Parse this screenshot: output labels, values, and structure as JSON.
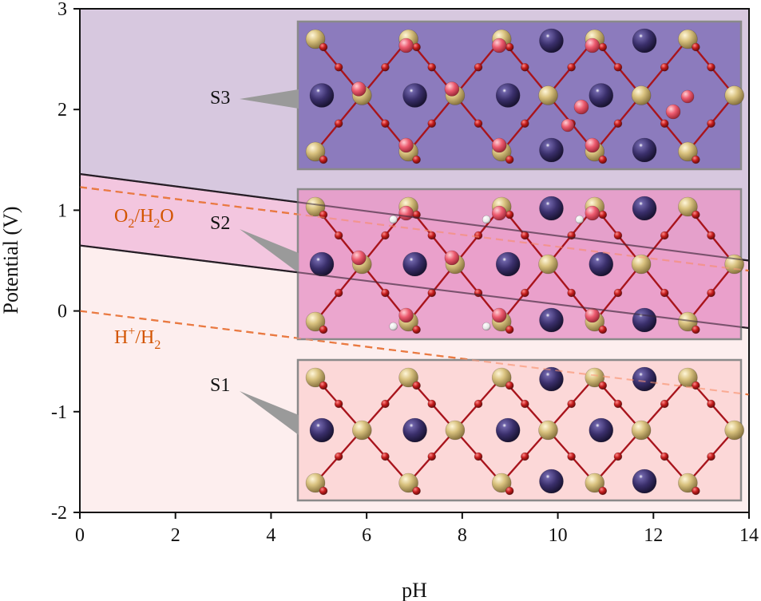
{
  "chart_data": {
    "type": "phase-diagram",
    "title": "",
    "xlabel": "pH",
    "ylabel": "Potential (V)",
    "xlim": [
      0,
      14
    ],
    "ylim": [
      -2,
      3
    ],
    "xticks": [
      0,
      2,
      4,
      6,
      8,
      10,
      12,
      14
    ],
    "yticks": [
      -2,
      -1,
      0,
      1,
      2,
      3
    ],
    "boundaries": [
      {
        "name": "S2/S3 boundary",
        "color": "#111111",
        "points": [
          [
            0,
            1.36
          ],
          [
            14,
            0.5
          ]
        ]
      },
      {
        "name": "S1/S2 boundary",
        "color": "#111111",
        "points": [
          [
            0,
            0.65
          ],
          [
            14,
            -0.17
          ]
        ]
      }
    ],
    "reference_lines": [
      {
        "label_main": "O",
        "label_sub1": "2",
        "label_mid": "/H",
        "label_sub2": "2",
        "label_end": "O",
        "color": "#d35400",
        "dash": "dashed",
        "points": [
          [
            0,
            1.23
          ],
          [
            14,
            0.4
          ]
        ]
      },
      {
        "label_main": "H",
        "label_sup": "+",
        "label_mid": "/H",
        "label_sub2": "2",
        "label_end": "",
        "color": "#d35400",
        "dash": "dashed",
        "points": [
          [
            0,
            0.0
          ],
          [
            14,
            -0.83
          ]
        ]
      }
    ],
    "regions": [
      {
        "name": "S3",
        "color": "#d7c8df"
      },
      {
        "name": "S2",
        "color": "#f3c6df"
      },
      {
        "name": "S1",
        "color": "#fdeeee"
      }
    ],
    "insets": [
      {
        "label": "S3",
        "background": "#8c7bbd"
      },
      {
        "label": "S2",
        "background": "#e899c8"
      },
      {
        "label": "S1",
        "background": "#fbd3d3"
      }
    ],
    "atom_colors": {
      "metal": "#d9c27f",
      "cation": "#3a2f6b",
      "oxygen": "#b51a1a",
      "adsorbate_oxygen": "#ec5a6e",
      "hydrogen": "#f2f2f2"
    }
  }
}
